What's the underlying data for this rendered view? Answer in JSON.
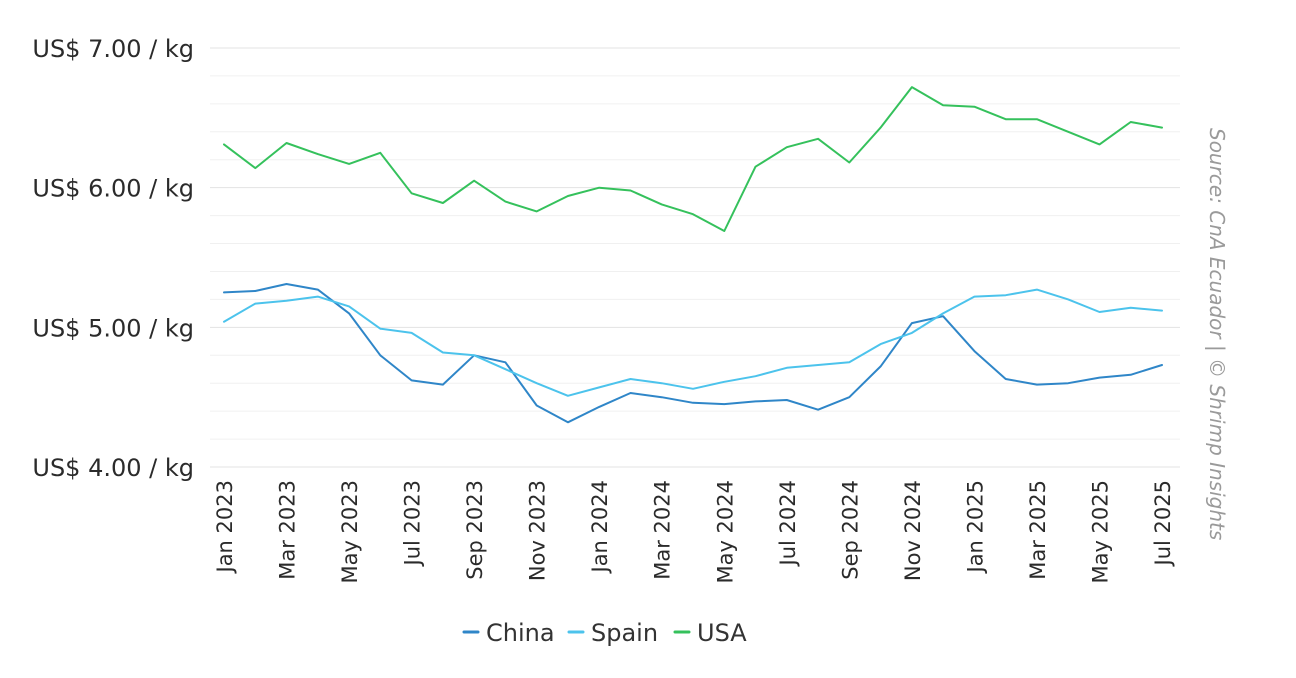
{
  "chart_data": {
    "type": "line",
    "title": "",
    "xlabel": "",
    "ylabel": "",
    "ylim": [
      4.0,
      7.0
    ],
    "yticks": [
      4.0,
      5.0,
      6.0,
      7.0
    ],
    "ytick_labels": [
      "US$ 4.00 / kg",
      "US$ 5.00 / kg",
      "US$ 6.00 / kg",
      "US$ 7.00 / kg"
    ],
    "x": [
      "Jan 2023",
      "Feb 2023",
      "Mar 2023",
      "Apr 2023",
      "May 2023",
      "Jun 2023",
      "Jul 2023",
      "Aug 2023",
      "Sep 2023",
      "Oct 2023",
      "Nov 2023",
      "Dec 2023",
      "Jan 2024",
      "Feb 2024",
      "Mar 2024",
      "Apr 2024",
      "May 2024",
      "Jun 2024",
      "Jul 2024",
      "Aug 2024",
      "Sep 2024",
      "Oct 2024",
      "Nov 2024",
      "Dec 2024",
      "Jan 2025",
      "Feb 2025",
      "Mar 2025",
      "Apr 2025",
      "May 2025",
      "Jun 2025",
      "Jul 2025"
    ],
    "xtick_labels": [
      "Jan 2023",
      "Mar 2023",
      "May 2023",
      "Jul 2023",
      "Sep 2023",
      "Nov 2023",
      "Jan 2024",
      "Mar 2024",
      "May 2024",
      "Jul 2024",
      "Sep 2024",
      "Nov 2024",
      "Jan 2025",
      "Mar 2025",
      "May 2025",
      "Jul 2025"
    ],
    "grid": true,
    "legend_position": "bottom-center",
    "series": [
      {
        "name": "China",
        "color": "#2f86c8",
        "values": [
          5.25,
          5.26,
          5.31,
          5.27,
          5.1,
          4.8,
          4.62,
          4.59,
          4.8,
          4.75,
          4.44,
          4.32,
          4.43,
          4.53,
          4.5,
          4.46,
          4.45,
          4.47,
          4.48,
          4.41,
          4.5,
          4.72,
          5.03,
          5.08,
          4.83,
          4.63,
          4.59,
          4.6,
          4.64,
          4.66,
          4.73
        ]
      },
      {
        "name": "Spain",
        "color": "#4cc3ec",
        "values": [
          5.04,
          5.17,
          5.19,
          5.22,
          5.15,
          4.99,
          4.96,
          4.82,
          4.8,
          4.7,
          4.6,
          4.51,
          4.57,
          4.63,
          4.6,
          4.56,
          4.61,
          4.65,
          4.71,
          4.73,
          4.75,
          4.88,
          4.96,
          5.1,
          5.22,
          5.23,
          5.27,
          5.2,
          5.11,
          5.14,
          5.12
        ]
      },
      {
        "name": "USA",
        "color": "#35c15c",
        "values": [
          6.31,
          6.14,
          6.32,
          6.24,
          6.17,
          6.25,
          5.96,
          5.89,
          6.05,
          5.9,
          5.83,
          5.94,
          6.0,
          5.98,
          5.88,
          5.81,
          5.69,
          6.15,
          6.29,
          6.35,
          6.18,
          6.43,
          6.72,
          6.59,
          6.58,
          6.49,
          6.49,
          6.4,
          6.31,
          6.47,
          6.43
        ]
      }
    ],
    "source": "Source: CnA Ecuador | © Shrimp Insights"
  }
}
